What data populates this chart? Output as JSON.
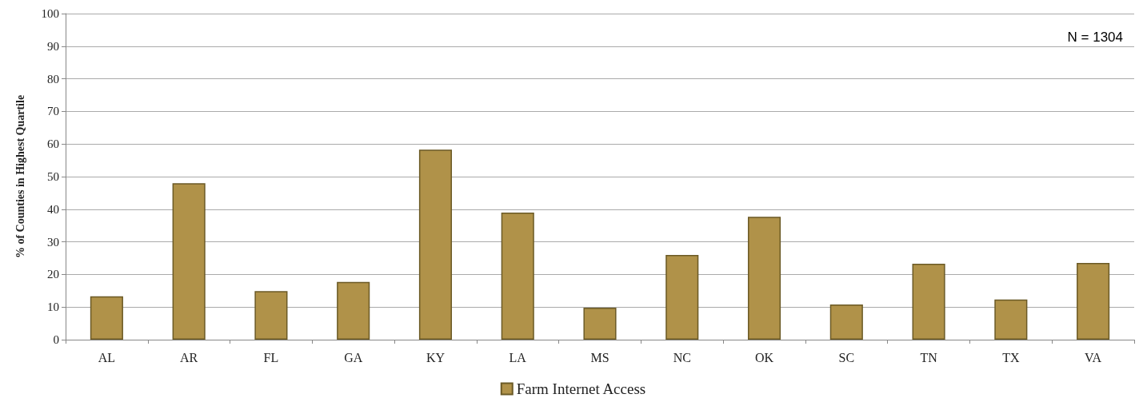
{
  "chart_data": {
    "type": "bar",
    "ylabel": "% of Counties in Highest Quartile",
    "categories": [
      "AL",
      "AR",
      "FL",
      "GA",
      "KY",
      "LA",
      "MS",
      "NC",
      "OK",
      "SC",
      "TN",
      "TX",
      "VA"
    ],
    "series": [
      {
        "name": "Farm Internet Access",
        "color": "#b09249",
        "values": [
          13.3,
          48.0,
          14.9,
          17.7,
          58.3,
          39.0,
          9.8,
          26.0,
          37.7,
          10.8,
          23.3,
          12.3,
          23.5
        ]
      }
    ],
    "ylim": [
      0,
      100
    ],
    "yticks": [
      0,
      10,
      20,
      30,
      40,
      50,
      60,
      70,
      80,
      90,
      100
    ],
    "grid": "y",
    "legend": "bottom",
    "annotations": [
      "N = 1304"
    ]
  }
}
